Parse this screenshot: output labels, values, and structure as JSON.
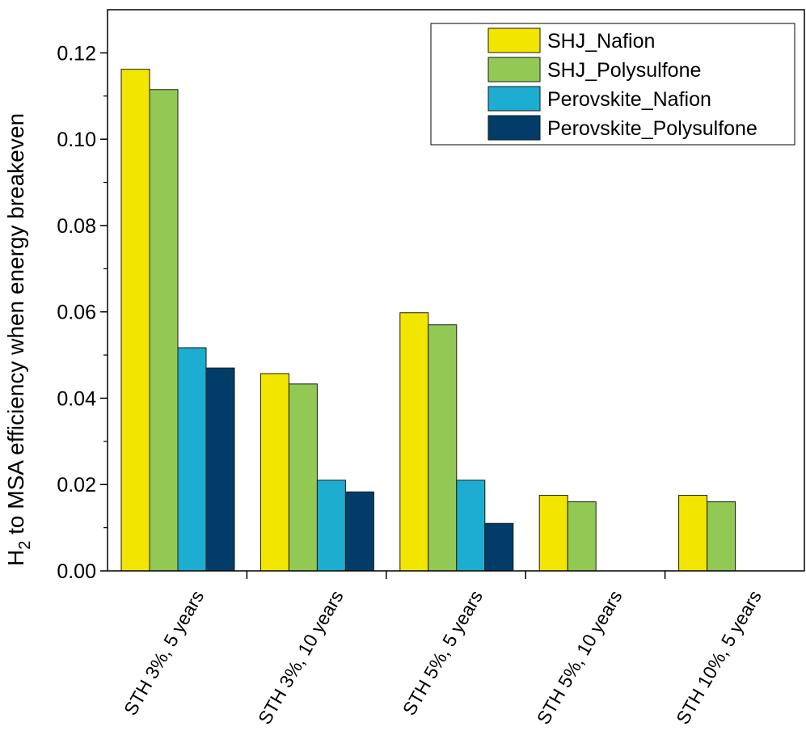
{
  "chart_data": {
    "type": "bar",
    "categories": [
      "STH 3%, 5 years",
      "STH 3%, 10 years",
      "STH 5%, 5 years",
      "STH 5%, 10 years",
      "STH 10%, 5 years"
    ],
    "series": [
      {
        "name": "SHJ_Nafion",
        "color": "#f2e600",
        "values": [
          0.1162,
          0.0457,
          0.0598,
          0.0175,
          0.0175
        ]
      },
      {
        "name": "SHJ_Polysulfone",
        "color": "#92c954",
        "values": [
          0.1115,
          0.0433,
          0.057,
          0.016,
          0.016
        ]
      },
      {
        "name": "Perovskite_Nafion",
        "color": "#1cadd0",
        "values": [
          0.0517,
          0.021,
          0.021,
          0,
          0
        ]
      },
      {
        "name": "Perovskite_Polysulfone",
        "color": "#023d6a",
        "values": [
          0.047,
          0.0183,
          0.011,
          0,
          0
        ]
      }
    ],
    "ylabel_main": "H",
    "ylabel_sub": "2",
    "ylabel_rest": " to MSA efficiency when energy breakeven",
    "ylim": [
      0,
      0.13
    ],
    "yticks": [
      "0.00",
      "0.02",
      "0.04",
      "0.06",
      "0.08",
      "0.10",
      "0.12"
    ],
    "legend_position": "top-right",
    "grid": false
  }
}
